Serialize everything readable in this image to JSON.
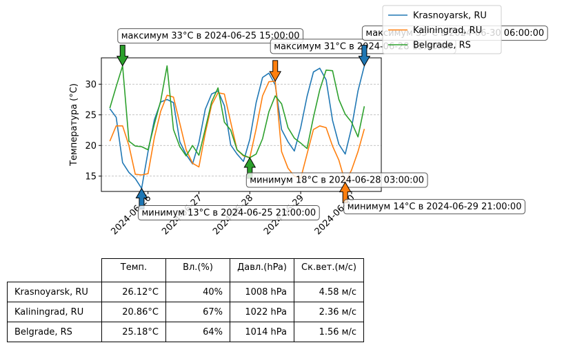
{
  "chart_data": {
    "type": "line",
    "ylabel": "Температура (°C)",
    "xlabel": "",
    "ylim": [
      12.5,
      34.3
    ],
    "xlim": [
      "2024-06-25 02:00",
      "2024-06-30 14:00"
    ],
    "yticks": [
      15,
      20,
      25,
      30
    ],
    "xticks": [
      "2024-06-26",
      "2024-06-27",
      "2024-06-28",
      "2024-06-29",
      "2024-06-30"
    ],
    "grid": "y-dashed",
    "legend_position": "top-right",
    "series": [
      {
        "name": "Krasnoyarsk, RU",
        "color": "#1f77b4",
        "points": [
          [
            "2024-06-25 06:00",
            26.0
          ],
          [
            "2024-06-25 09:00",
            24.6
          ],
          [
            "2024-06-25 12:00",
            17.2
          ],
          [
            "2024-06-25 15:00",
            15.6
          ],
          [
            "2024-06-25 18:00",
            14.6
          ],
          [
            "2024-06-25 21:00",
            13.0
          ],
          [
            "2024-06-26 00:00",
            19.0
          ],
          [
            "2024-06-26 03:00",
            24.2
          ],
          [
            "2024-06-26 06:00",
            27.1
          ],
          [
            "2024-06-26 09:00",
            27.5
          ],
          [
            "2024-06-26 12:00",
            27.0
          ],
          [
            "2024-06-26 15:00",
            20.6
          ],
          [
            "2024-06-26 18:00",
            18.5
          ],
          [
            "2024-06-26 21:00",
            17.0
          ],
          [
            "2024-06-27 00:00",
            20.5
          ],
          [
            "2024-06-27 03:00",
            25.9
          ],
          [
            "2024-06-27 06:00",
            28.4
          ],
          [
            "2024-06-27 09:00",
            28.9
          ],
          [
            "2024-06-27 12:00",
            26.5
          ],
          [
            "2024-06-27 15:00",
            20.1
          ],
          [
            "2024-06-27 18:00",
            18.6
          ],
          [
            "2024-06-27 21:00",
            17.4
          ],
          [
            "2024-06-28 00:00",
            21.0
          ],
          [
            "2024-06-28 03:00",
            27.0
          ],
          [
            "2024-06-28 06:00",
            31.1
          ],
          [
            "2024-06-28 09:00",
            31.8
          ],
          [
            "2024-06-28 12:00",
            29.9
          ],
          [
            "2024-06-28 15:00",
            22.6
          ],
          [
            "2024-06-28 18:00",
            20.6
          ],
          [
            "2024-06-28 21:00",
            19.1
          ],
          [
            "2024-06-29 00:00",
            22.9
          ],
          [
            "2024-06-29 03:00",
            28.0
          ],
          [
            "2024-06-29 06:00",
            32.0
          ],
          [
            "2024-06-29 09:00",
            32.6
          ],
          [
            "2024-06-29 12:00",
            30.7
          ],
          [
            "2024-06-29 15:00",
            24.1
          ],
          [
            "2024-06-29 18:00",
            20.2
          ],
          [
            "2024-06-29 21:00",
            18.6
          ],
          [
            "2024-06-30 00:00",
            22.9
          ],
          [
            "2024-06-30 03:00",
            28.9
          ],
          [
            "2024-06-30 06:00",
            33.0
          ]
        ]
      },
      {
        "name": "Kaliningrad, RU",
        "color": "#ff7f0e",
        "points": [
          [
            "2024-06-25 06:00",
            20.7
          ],
          [
            "2024-06-25 09:00",
            23.2
          ],
          [
            "2024-06-25 12:00",
            23.2
          ],
          [
            "2024-06-25 15:00",
            20.0
          ],
          [
            "2024-06-25 18:00",
            15.3
          ],
          [
            "2024-06-25 21:00",
            15.2
          ],
          [
            "2024-06-26 00:00",
            15.4
          ],
          [
            "2024-06-26 03:00",
            21.3
          ],
          [
            "2024-06-26 06:00",
            25.6
          ],
          [
            "2024-06-26 09:00",
            28.2
          ],
          [
            "2024-06-26 12:00",
            27.9
          ],
          [
            "2024-06-26 15:00",
            23.6
          ],
          [
            "2024-06-26 18:00",
            19.3
          ],
          [
            "2024-06-26 21:00",
            17.1
          ],
          [
            "2024-06-27 00:00",
            16.5
          ],
          [
            "2024-06-27 03:00",
            22.0
          ],
          [
            "2024-06-27 06:00",
            26.6
          ],
          [
            "2024-06-27 09:00",
            28.6
          ],
          [
            "2024-06-27 12:00",
            28.4
          ],
          [
            "2024-06-27 15:00",
            23.8
          ],
          [
            "2024-06-27 18:00",
            19.3
          ],
          [
            "2024-06-27 21:00",
            18.3
          ],
          [
            "2024-06-28 00:00",
            18.0
          ],
          [
            "2024-06-28 03:00",
            22.7
          ],
          [
            "2024-06-28 06:00",
            28.1
          ],
          [
            "2024-06-28 09:00",
            30.4
          ],
          [
            "2024-06-28 12:00",
            30.5
          ],
          [
            "2024-06-28 15:00",
            19.0
          ],
          [
            "2024-06-28 18:00",
            16.3
          ],
          [
            "2024-06-28 21:00",
            15.0
          ],
          [
            "2024-06-29 00:00",
            14.6
          ],
          [
            "2024-06-29 03:00",
            18.6
          ],
          [
            "2024-06-29 06:00",
            22.6
          ],
          [
            "2024-06-29 09:00",
            23.2
          ],
          [
            "2024-06-29 12:00",
            22.9
          ],
          [
            "2024-06-29 15:00",
            19.9
          ],
          [
            "2024-06-29 18:00",
            17.6
          ],
          [
            "2024-06-29 21:00",
            14.0
          ],
          [
            "2024-06-30 00:00",
            16.0
          ],
          [
            "2024-06-30 03:00",
            19.0
          ],
          [
            "2024-06-30 06:00",
            22.7
          ]
        ]
      },
      {
        "name": "Belgrade, RS",
        "color": "#2ca02c",
        "points": [
          [
            "2024-06-25 06:00",
            26.1
          ],
          [
            "2024-06-25 09:00",
            29.6
          ],
          [
            "2024-06-25 12:00",
            33.0
          ],
          [
            "2024-06-25 15:00",
            20.7
          ],
          [
            "2024-06-25 18:00",
            19.9
          ],
          [
            "2024-06-25 21:00",
            19.8
          ],
          [
            "2024-06-26 00:00",
            19.3
          ],
          [
            "2024-06-26 03:00",
            23.5
          ],
          [
            "2024-06-26 06:00",
            27.3
          ],
          [
            "2024-06-26 09:00",
            33.0
          ],
          [
            "2024-06-26 12:00",
            22.6
          ],
          [
            "2024-06-26 15:00",
            19.8
          ],
          [
            "2024-06-26 18:00",
            18.3
          ],
          [
            "2024-06-26 21:00",
            20.0
          ],
          [
            "2024-06-27 00:00",
            18.4
          ],
          [
            "2024-06-27 03:00",
            22.7
          ],
          [
            "2024-06-27 06:00",
            27.1
          ],
          [
            "2024-06-27 09:00",
            29.4
          ],
          [
            "2024-06-27 12:00",
            23.8
          ],
          [
            "2024-06-27 15:00",
            22.5
          ],
          [
            "2024-06-27 18:00",
            19.3
          ],
          [
            "2024-06-27 21:00",
            18.4
          ],
          [
            "2024-06-28 00:00",
            18.0
          ],
          [
            "2024-06-28 03:00",
            18.6
          ],
          [
            "2024-06-28 06:00",
            21.1
          ],
          [
            "2024-06-28 09:00",
            25.5
          ],
          [
            "2024-06-28 12:00",
            28.1
          ],
          [
            "2024-06-28 15:00",
            26.8
          ],
          [
            "2024-06-28 18:00",
            22.9
          ],
          [
            "2024-06-28 21:00",
            21.2
          ],
          [
            "2024-06-29 00:00",
            20.4
          ],
          [
            "2024-06-29 03:00",
            19.5
          ],
          [
            "2024-06-29 06:00",
            24.6
          ],
          [
            "2024-06-29 09:00",
            29.1
          ],
          [
            "2024-06-29 12:00",
            32.3
          ],
          [
            "2024-06-29 15:00",
            32.2
          ],
          [
            "2024-06-29 18:00",
            27.5
          ],
          [
            "2024-06-29 21:00",
            25.1
          ],
          [
            "2024-06-30 00:00",
            23.8
          ],
          [
            "2024-06-30 03:00",
            21.4
          ],
          [
            "2024-06-30 06:00",
            26.4
          ]
        ]
      }
    ],
    "annotations": [
      {
        "text": "максимум 33°C в 2024-06-25 15:00:00",
        "series": "Belgrade, RS",
        "color": "#2ca02c",
        "point": [
          "2024-06-25 12:00",
          33.0
        ],
        "direction": "down"
      },
      {
        "text": "минимум 13°C в 2024-06-25 21:00:00",
        "series": "Krasnoyarsk, RU",
        "color": "#1f77b4",
        "point": [
          "2024-06-25 21:00",
          13.0
        ],
        "direction": "up"
      },
      {
        "text": "максимум 31°C в 2024-06-28 15:00:00",
        "series": "Kaliningrad, RU",
        "color": "#ff7f0e",
        "point": [
          "2024-06-28 12:00",
          30.5
        ],
        "direction": "down"
      },
      {
        "text": "минимум 18°C в 2024-06-28 03:00:00",
        "series": "Belgrade, RS",
        "color": "#2ca02c",
        "point": [
          "2024-06-28 00:00",
          18.0
        ],
        "direction": "up"
      },
      {
        "text": "максимум 33°C в 2024-06-30 06:00:00",
        "series": "Krasnoyarsk, RU",
        "color": "#1f77b4",
        "point": [
          "2024-06-30 06:00",
          33.0
        ],
        "direction": "down"
      },
      {
        "text": "минимум 14°C в 2024-06-29 21:00:00",
        "series": "Kaliningrad, RU",
        "color": "#ff7f0e",
        "point": [
          "2024-06-29 21:00",
          14.0
        ],
        "direction": "up"
      }
    ]
  },
  "table": {
    "columns": [
      "Темп.",
      "Вл.(%)",
      "Давл.(hPa)",
      "Ск.вет.(м/с)"
    ],
    "rows": [
      {
        "city": "Krasnoyarsk, RU",
        "temp": "26.12°C",
        "humidity": "40%",
        "pressure": "1008 hPa",
        "wind": "4.58 м/с"
      },
      {
        "city": "Kaliningrad, RU",
        "temp": "20.86°C",
        "humidity": "67%",
        "pressure": "1022 hPa",
        "wind": "2.36 м/с"
      },
      {
        "city": "Belgrade, RS",
        "temp": "25.18°C",
        "humidity": "64%",
        "pressure": "1014 hPa",
        "wind": "1.56 м/с"
      }
    ]
  }
}
